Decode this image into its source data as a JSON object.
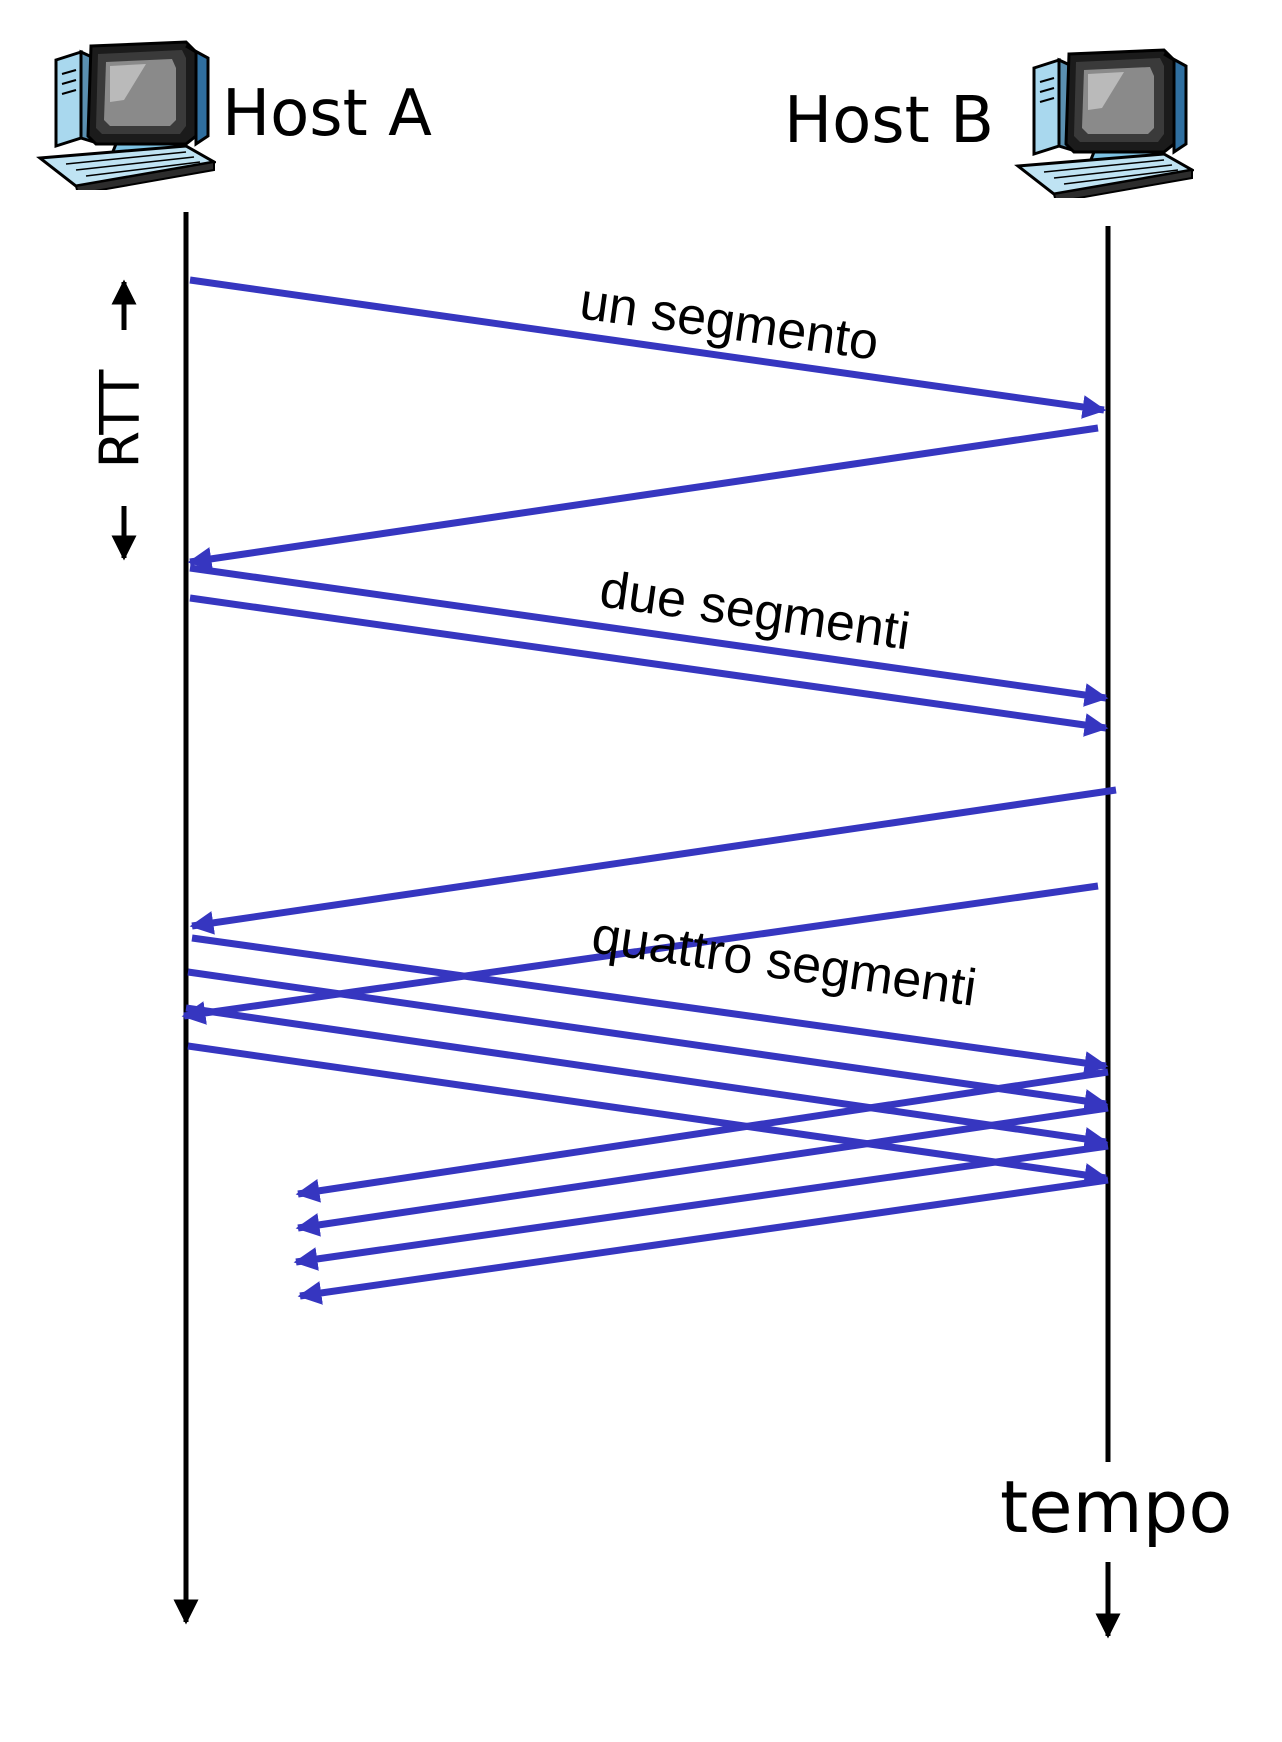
{
  "hosts": {
    "a": {
      "label": "Host A"
    },
    "b": {
      "label": "Host B"
    }
  },
  "segment_labels": {
    "one": "un segmento",
    "two": "due segmenti",
    "four": "quattro segmenti"
  },
  "rtt_label": "RTT",
  "time_label": "tempo",
  "colors": {
    "message": "#3636c0",
    "timeline": "#000000"
  },
  "icons": {
    "host_a": "desktop-computer-icon",
    "host_b": "desktop-computer-icon"
  }
}
